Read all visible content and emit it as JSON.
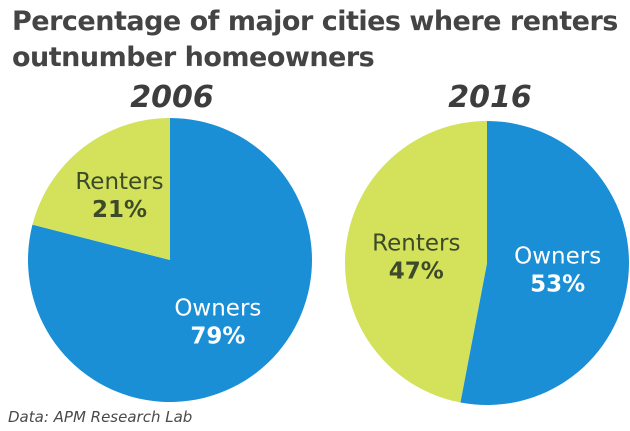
{
  "title": "Percentage of major cities where renters outnumber homeowners",
  "source": "Data: APM Research Lab",
  "colors": {
    "owners": "#1a8fd6",
    "renters": "#d4e15a",
    "label_dark": "#3d4a2a",
    "label_light": "#ffffff"
  },
  "chart_data": [
    {
      "type": "pie",
      "title": "2006",
      "slices": [
        {
          "name": "Owners",
          "value": 79,
          "label": "79%"
        },
        {
          "name": "Renters",
          "value": 21,
          "label": "21%"
        }
      ]
    },
    {
      "type": "pie",
      "title": "2016",
      "slices": [
        {
          "name": "Owners",
          "value": 53,
          "label": "53%"
        },
        {
          "name": "Renters",
          "value": 47,
          "label": "47%"
        }
      ]
    }
  ]
}
